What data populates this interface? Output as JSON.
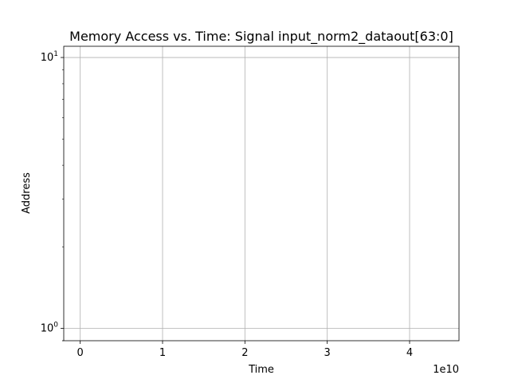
{
  "chart_data": {
    "type": "scatter",
    "title": "Memory Access vs. Time: Signal input_norm2_dataout[63:0]",
    "xlabel": "Time",
    "ylabel": "Address",
    "x_offset_text": "1e10",
    "xlim": [
      -0.2,
      4.6
    ],
    "xticks": [
      {
        "value": 0,
        "label": "0"
      },
      {
        "value": 1,
        "label": "1"
      },
      {
        "value": 2,
        "label": "2"
      },
      {
        "value": 3,
        "label": "3"
      },
      {
        "value": 4,
        "label": "4"
      }
    ],
    "yscale": "log",
    "ylim": [
      0.9,
      11
    ],
    "yticks": [
      {
        "value": 1,
        "base": "10",
        "exp": "0"
      },
      {
        "value": 10,
        "base": "10",
        "exp": "1"
      }
    ],
    "grid": true,
    "series": [
      {
        "x": [],
        "y": []
      }
    ],
    "colors": {
      "grid": "#b0b0b0",
      "axes": "#000000",
      "background": "#ffffff"
    }
  }
}
